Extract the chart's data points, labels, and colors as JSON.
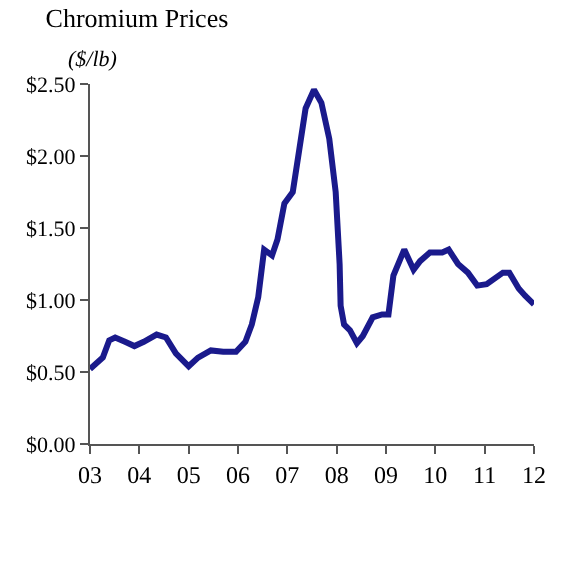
{
  "chart_data": {
    "type": "line",
    "title": "Chromium Prices",
    "subtitle": "($/lb)",
    "x": [
      2003.0,
      2003.26,
      2003.39,
      2003.51,
      2003.71,
      2003.9,
      2004.09,
      2004.35,
      2004.54,
      2004.74,
      2005.0,
      2005.19,
      2005.45,
      2005.7,
      2005.96,
      2006.15,
      2006.28,
      2006.41,
      2006.53,
      2006.69,
      2006.8,
      2006.94,
      2007.11,
      2007.24,
      2007.37,
      2007.54,
      2007.69,
      2007.85,
      2007.98,
      2008.06,
      2008.08,
      2008.15,
      2008.27,
      2008.41,
      2008.53,
      2008.73,
      2008.92,
      2009.05,
      2009.15,
      2009.37,
      2009.56,
      2009.69,
      2009.89,
      2010.14,
      2010.27,
      2010.46,
      2010.66,
      2010.85,
      2011.04,
      2011.37,
      2011.5,
      2011.69,
      2011.82,
      2012.0
    ],
    "series": [
      {
        "color": "#1a1a8c",
        "values": [
          0.52,
          0.6,
          0.72,
          0.74,
          0.71,
          0.68,
          0.71,
          0.76,
          0.74,
          0.63,
          0.54,
          0.6,
          0.65,
          0.64,
          0.64,
          0.71,
          0.83,
          1.02,
          1.35,
          1.31,
          1.42,
          1.67,
          1.75,
          2.04,
          2.33,
          2.46,
          2.37,
          2.12,
          1.75,
          1.25,
          0.96,
          0.83,
          0.79,
          0.7,
          0.75,
          0.88,
          0.9,
          0.9,
          1.17,
          1.35,
          1.21,
          1.27,
          1.33,
          1.33,
          1.35,
          1.25,
          1.19,
          1.1,
          1.11,
          1.19,
          1.19,
          1.08,
          1.03,
          0.97
        ]
      }
    ],
    "xlim": [
      2003,
      2012
    ],
    "xticks": [
      {
        "value": 2003,
        "label": "03"
      },
      {
        "value": 2004,
        "label": "04"
      },
      {
        "value": 2005,
        "label": "05"
      },
      {
        "value": 2006,
        "label": "06"
      },
      {
        "value": 2007,
        "label": "07"
      },
      {
        "value": 2008,
        "label": "08"
      },
      {
        "value": 2009,
        "label": "09"
      },
      {
        "value": 2010,
        "label": "10"
      },
      {
        "value": 2011,
        "label": "11"
      },
      {
        "value": 2012,
        "label": "12"
      }
    ],
    "ylim": [
      0,
      2.5
    ],
    "yticks": [
      {
        "value": 0,
        "label": "$0.00"
      },
      {
        "value": 0.5,
        "label": "$0.50"
      },
      {
        "value": 1,
        "label": "$1.00"
      },
      {
        "value": 1.5,
        "label": "$1.50"
      },
      {
        "value": 2,
        "label": "$2.00"
      },
      {
        "value": 2.5,
        "label": "$2.50"
      }
    ],
    "marker": "none",
    "line_style": "solid"
  }
}
